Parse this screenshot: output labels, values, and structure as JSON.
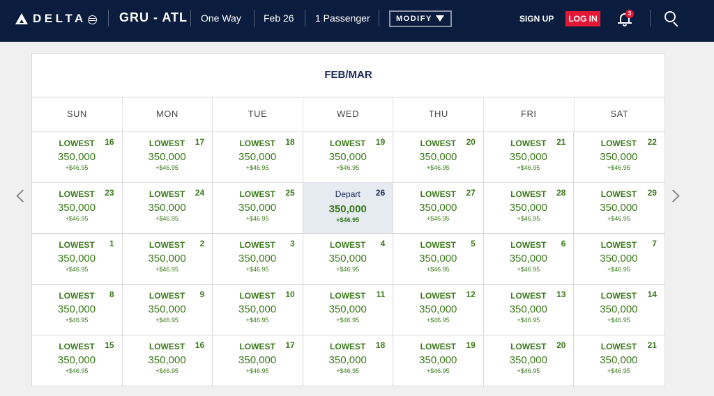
{
  "header": {
    "logo_text": "DELTA",
    "route": "GRU - ATL",
    "trip_type": "One Way",
    "date": "Feb 26",
    "passengers": "1 Passenger",
    "modify_label": "MODIFY",
    "sign_up_label": "SIGN UP",
    "log_in_label": "LOG IN",
    "notification_count": "3",
    "colors": {
      "bar": "#0b1d3f",
      "login": "#e31837"
    }
  },
  "calendar": {
    "month_title": "FEB/MAR",
    "weekdays": [
      "SUN",
      "MON",
      "TUE",
      "WED",
      "THU",
      "FRI",
      "SAT"
    ],
    "price_color": "#3a7a1a",
    "selected_color": "#e6ebf2",
    "cells": [
      {
        "label": "LOWEST",
        "day": "16",
        "price": "350,000",
        "fee": "+$46.95"
      },
      {
        "label": "LOWEST",
        "day": "17",
        "price": "350,000",
        "fee": "+$46.95"
      },
      {
        "label": "LOWEST",
        "day": "18",
        "price": "350,000",
        "fee": "+$46.95"
      },
      {
        "label": "LOWEST",
        "day": "19",
        "price": "350,000",
        "fee": "+$46.95"
      },
      {
        "label": "LOWEST",
        "day": "20",
        "price": "350,000",
        "fee": "+$46.95"
      },
      {
        "label": "LOWEST",
        "day": "21",
        "price": "350,000",
        "fee": "+$46.95"
      },
      {
        "label": "LOWEST",
        "day": "22",
        "price": "350,000",
        "fee": "+$46.95"
      },
      {
        "label": "LOWEST",
        "day": "23",
        "price": "350,000",
        "fee": "+$46.95"
      },
      {
        "label": "LOWEST",
        "day": "24",
        "price": "350,000",
        "fee": "+$46.95"
      },
      {
        "label": "LOWEST",
        "day": "25",
        "price": "350,000",
        "fee": "+$46.95"
      },
      {
        "label": "Depart",
        "day": "26",
        "price": "350,000",
        "fee": "+$46.95",
        "selected": true
      },
      {
        "label": "LOWEST",
        "day": "27",
        "price": "350,000",
        "fee": "+$46.95"
      },
      {
        "label": "LOWEST",
        "day": "28",
        "price": "350,000",
        "fee": "+$46.95"
      },
      {
        "label": "LOWEST",
        "day": "29",
        "price": "350,000",
        "fee": "+$46.95"
      },
      {
        "label": "LOWEST",
        "day": "1",
        "price": "350,000",
        "fee": "+$46.95"
      },
      {
        "label": "LOWEST",
        "day": "2",
        "price": "350,000",
        "fee": "+$46.95"
      },
      {
        "label": "LOWEST",
        "day": "3",
        "price": "350,000",
        "fee": "+$46.95"
      },
      {
        "label": "LOWEST",
        "day": "4",
        "price": "350,000",
        "fee": "+$46.95"
      },
      {
        "label": "LOWEST",
        "day": "5",
        "price": "350,000",
        "fee": "+$46.95"
      },
      {
        "label": "LOWEST",
        "day": "6",
        "price": "350,000",
        "fee": "+$46.95"
      },
      {
        "label": "LOWEST",
        "day": "7",
        "price": "350,000",
        "fee": "+$46.95"
      },
      {
        "label": "LOWEST",
        "day": "8",
        "price": "350,000",
        "fee": "+$46.95"
      },
      {
        "label": "LOWEST",
        "day": "9",
        "price": "350,000",
        "fee": "+$46.95"
      },
      {
        "label": "LOWEST",
        "day": "10",
        "price": "350,000",
        "fee": "+$46.95"
      },
      {
        "label": "LOWEST",
        "day": "11",
        "price": "350,000",
        "fee": "+$46.95"
      },
      {
        "label": "LOWEST",
        "day": "12",
        "price": "350,000",
        "fee": "+$46.95"
      },
      {
        "label": "LOWEST",
        "day": "13",
        "price": "350,000",
        "fee": "+$46.95"
      },
      {
        "label": "LOWEST",
        "day": "14",
        "price": "350,000",
        "fee": "+$46.95"
      },
      {
        "label": "LOWEST",
        "day": "15",
        "price": "350,000",
        "fee": "+$46.95"
      },
      {
        "label": "LOWEST",
        "day": "16",
        "price": "350,000",
        "fee": "+$46.95"
      },
      {
        "label": "LOWEST",
        "day": "17",
        "price": "350,000",
        "fee": "+$46.95"
      },
      {
        "label": "LOWEST",
        "day": "18",
        "price": "350,000",
        "fee": "+$46.95"
      },
      {
        "label": "LOWEST",
        "day": "19",
        "price": "350,000",
        "fee": "+$46.95"
      },
      {
        "label": "LOWEST",
        "day": "20",
        "price": "350,000",
        "fee": "+$46.95"
      },
      {
        "label": "LOWEST",
        "day": "21",
        "price": "350,000",
        "fee": "+$46.95"
      }
    ]
  },
  "icons": {
    "prev": "chevron-left-icon",
    "next": "chevron-right-icon",
    "notifications": "bell-icon",
    "search": "search-icon"
  }
}
